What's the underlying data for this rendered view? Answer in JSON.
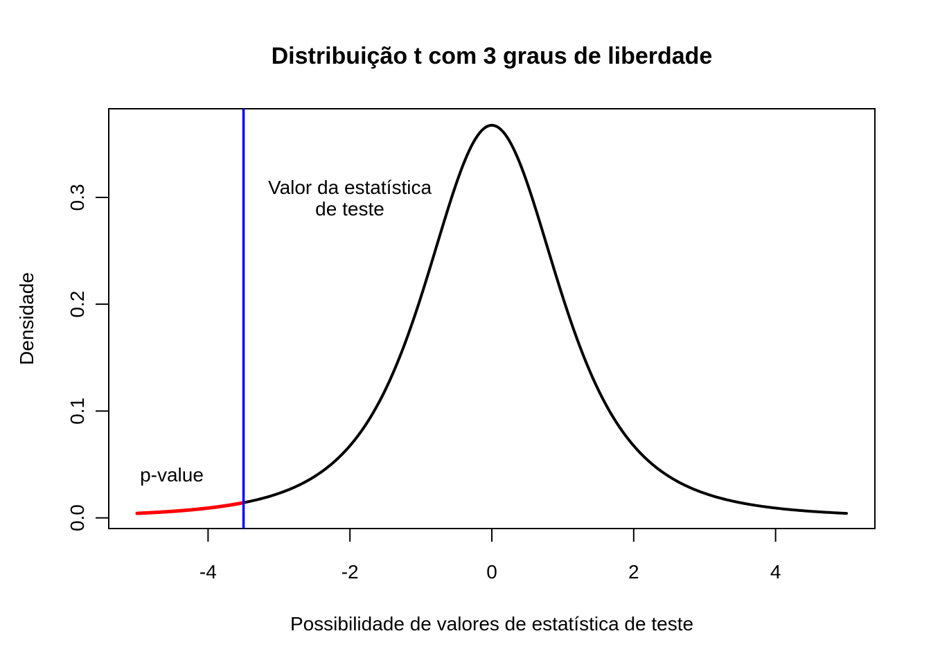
{
  "chart_data": {
    "type": "line",
    "title": "Distribuição t com 3 graus de liberdade",
    "xlabel": "Possibilidade de valores de estatística de teste",
    "ylabel": "Densidade",
    "xlim": [
      -5.4,
      5.4
    ],
    "ylim": [
      -0.01,
      0.383
    ],
    "x_ticks": [
      -4,
      -2,
      0,
      2,
      4
    ],
    "x_tick_labels": [
      "-4",
      "-2",
      "0",
      "2",
      "4"
    ],
    "y_ticks": [
      0.0,
      0.1,
      0.2,
      0.3
    ],
    "y_tick_labels": [
      "0.0",
      "0.1",
      "0.2",
      "0.3"
    ],
    "grid": false,
    "series": [
      {
        "color": "#000000",
        "x": [
          -5,
          -4.5,
          -4,
          -3.5,
          -3,
          -2.5,
          -2,
          -1.5,
          -1,
          -0.75,
          -0.5,
          -0.25,
          0,
          0.25,
          0.5,
          0.75,
          1,
          1.5,
          2,
          2.5,
          3,
          3.5,
          4,
          4.5,
          5
        ],
        "y": [
          0.0042,
          0.0057,
          0.0092,
          0.0143,
          0.023,
          0.0374,
          0.0675,
          0.122,
          0.2067,
          0.2667,
          0.322,
          0.36,
          0.3676,
          0.36,
          0.322,
          0.2667,
          0.2067,
          0.122,
          0.0675,
          0.0374,
          0.023,
          0.0143,
          0.0092,
          0.0057,
          0.0042
        ]
      },
      {
        "color": "#ff0000",
        "x": [
          -5,
          -4.75,
          -4.5,
          -4.25,
          -4,
          -3.75,
          -3.5
        ],
        "y": [
          0.0042,
          0.0049,
          0.0057,
          0.0072,
          0.0092,
          0.0114,
          0.0143
        ]
      }
    ],
    "vline": {
      "x": -3.5,
      "color": "#0000ff"
    },
    "annotations": {
      "test_stat_line1": "Valor da estatística",
      "test_stat_line2": "de teste",
      "pvalue": "p-value"
    }
  }
}
